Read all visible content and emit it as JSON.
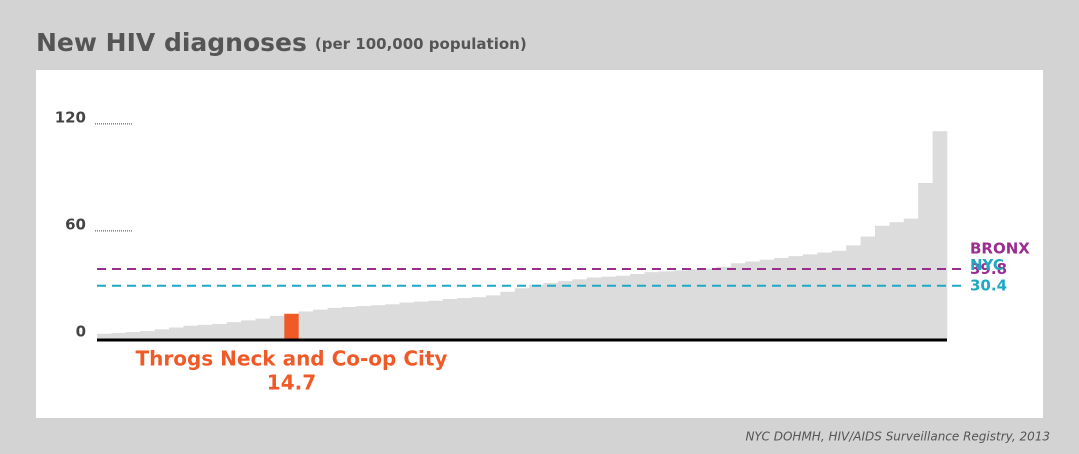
{
  "chart_data": {
    "type": "bar",
    "title": "New HIV diagnoses",
    "subtitle": "(per 100,000 population)",
    "source": "NYC DOHMH, HIV/AIDS Surveillance Registry, 2013",
    "categories": [
      null,
      null,
      null,
      null,
      null,
      null,
      null,
      null,
      null,
      null,
      null,
      null,
      null,
      "Throgs Neck and Co-op City",
      null,
      null,
      null,
      null,
      null,
      null,
      null,
      null,
      null,
      null,
      null,
      null,
      null,
      null,
      null,
      null,
      null,
      null,
      null,
      null,
      null,
      null,
      null,
      null,
      null,
      null,
      null,
      null,
      null,
      null,
      null,
      null,
      null,
      null,
      null,
      null,
      null,
      null,
      null,
      null,
      null,
      null,
      null,
      null,
      null
    ],
    "values": [
      3.5,
      4,
      4.5,
      5,
      6,
      7,
      8,
      8.5,
      9,
      10,
      11,
      12,
      13.5,
      14.7,
      16,
      17,
      18,
      18.5,
      19,
      19.5,
      20,
      21,
      21.5,
      22,
      23,
      23.5,
      24,
      25,
      27,
      29,
      31,
      32,
      33,
      34,
      35,
      35.5,
      36,
      37,
      38,
      38.5,
      39,
      39.5,
      40,
      41,
      43,
      44,
      45,
      46,
      47,
      48,
      49,
      50,
      53,
      58,
      64,
      66,
      68,
      88,
      117
    ],
    "color": "#dcdcdd",
    "highlight_color": "#f05a28",
    "reference_lines": [
      {
        "name": "BRONX",
        "value": 39.8,
        "color": "#9b2d8f"
      },
      {
        "name": "NYC",
        "value": 30.4,
        "color": "#1ea8c4"
      }
    ],
    "ylim": [
      0,
      130
    ],
    "yticks": [
      0,
      60,
      120
    ]
  }
}
